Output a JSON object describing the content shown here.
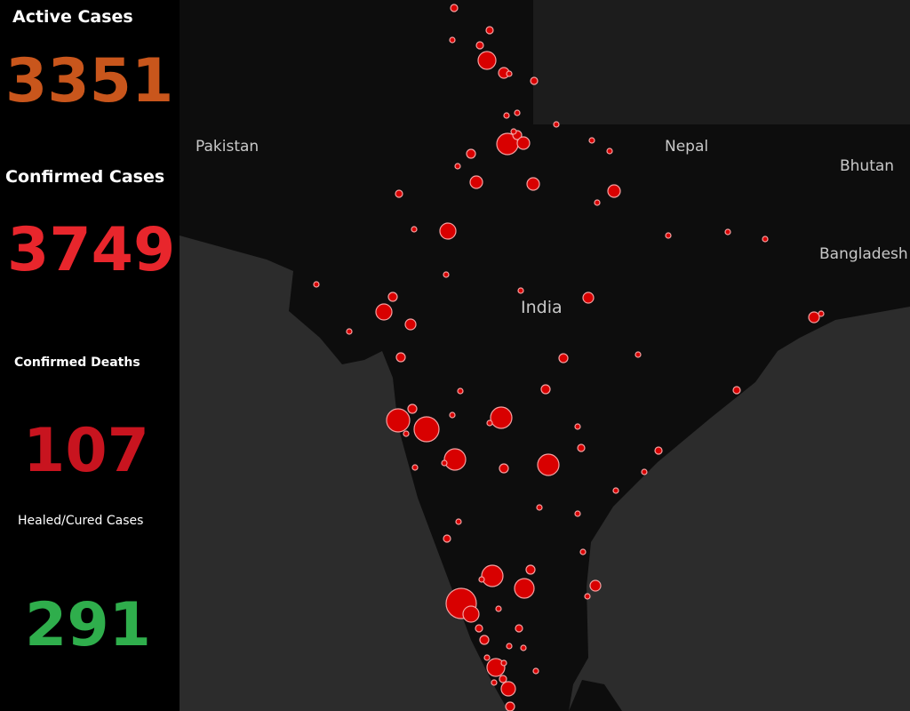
{
  "stats": [
    {
      "label": "Active Cases",
      "value": 3351
    },
    {
      "label": "Confirmed Cases",
      "value": 3749
    },
    {
      "label": "Confirmed Deaths",
      "value": 107
    },
    {
      "label": "Healed/Cured Cases",
      "value": 291
    }
  ],
  "map": {
    "places": [
      "Pakistan",
      "Nepal",
      "Bhutan",
      "Bangladesh",
      "India"
    ]
  }
}
